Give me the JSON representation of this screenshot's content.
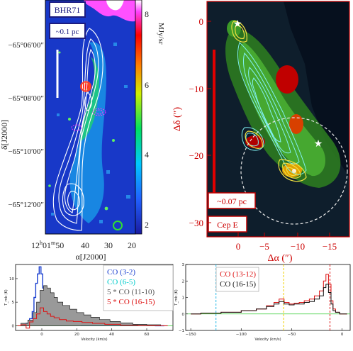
{
  "panel_a": {
    "label": "BHR71",
    "scale_label": "~0.1 pc",
    "colorbar_unit": "MJy/sr",
    "colorbar_ticks": [
      "8",
      "6",
      "4",
      "2"
    ],
    "dec_ticks": [
      "−65°06′00″",
      "−65°08′00″",
      "−65°10′00″",
      "−65°12′00″"
    ],
    "ra_ticks": [
      "12h01m50s",
      "40s",
      "30s",
      "20s"
    ],
    "ra_ticks_display": {
      "hms": "12",
      "h": "h",
      "m1": "01",
      "m": "m",
      "s1": "50",
      "t1": "40",
      "t2": "30",
      "t3": "20"
    },
    "ylabel": "δ[J2000]",
    "xlabel": "α[J2000]"
  },
  "panel_b": {
    "label": "Cep E",
    "scale_label": "~0.07 pc",
    "y_ticks": [
      "0",
      "−10",
      "−20",
      "−30"
    ],
    "x_ticks": [
      "0",
      "−5",
      "−10",
      "−15"
    ],
    "ylabel": "Δδ (″)",
    "xlabel": "Δα (″)",
    "accent_color": "#dd0000"
  },
  "chart_data": [
    {
      "type": "line",
      "xlabel": "Velocity (km/s)",
      "ylabel": "T_mb (K)",
      "x_ticks": [
        "0",
        "20",
        "40",
        "60"
      ],
      "y_ticks": [
        "0",
        "5",
        "10"
      ],
      "legend": [
        {
          "name": "CO (3-2)",
          "color": "#1a3fd0"
        },
        {
          "name": "CO (6-5)",
          "color": "#00cccc"
        },
        {
          "name": "5 * CO (11-10)",
          "color": "#555555"
        },
        {
          "name": "5 * CO (16-15)",
          "color": "#dd1111"
        }
      ],
      "series": [
        {
          "name": "CO (3-2)",
          "color": "#1a3fd0",
          "x": [
            -10,
            -8,
            -6,
            -5,
            -4,
            -3,
            -2,
            -1,
            0,
            1,
            2,
            4,
            6,
            10,
            15,
            20,
            30,
            40,
            50,
            60,
            70
          ],
          "y": [
            0.2,
            0.5,
            1.5,
            3,
            6,
            9,
            11,
            12.5,
            11,
            8,
            6,
            4,
            3,
            2.2,
            1.5,
            1,
            0.6,
            0.3,
            0.2,
            0.1,
            0
          ]
        },
        {
          "name": "CO (6-5)",
          "color": "#00cccc",
          "x": [
            -10,
            -6,
            -4,
            -2,
            -1,
            0,
            1,
            2,
            4,
            8,
            15,
            30,
            60
          ],
          "y": [
            0,
            0.3,
            1.2,
            3,
            3.8,
            3.5,
            2.2,
            1.2,
            0.6,
            0.3,
            0.1,
            0,
            0
          ]
        },
        {
          "name": "5 * CO (11-10)",
          "color": "#555555",
          "x": [
            -14,
            -10,
            -6,
            -4,
            -2,
            0,
            2,
            4,
            6,
            8,
            10,
            14,
            18,
            22,
            26,
            30,
            36,
            42,
            48,
            56,
            64,
            72
          ],
          "y": [
            0,
            0.5,
            1.2,
            2.8,
            5,
            7.5,
            8.5,
            8,
            7,
            6,
            5,
            4.3,
            3.5,
            2.8,
            2.3,
            1.8,
            1.3,
            0.9,
            0.6,
            0.3,
            0.2,
            0
          ]
        },
        {
          "name": "5 * CO (16-15)",
          "color": "#dd1111",
          "x": [
            -14,
            -10,
            -8,
            -6,
            -4,
            -2,
            0,
            2,
            4,
            6,
            8,
            12,
            16,
            20,
            26,
            32,
            40,
            50,
            60,
            72
          ],
          "y": [
            0,
            0.2,
            -0.5,
            0.8,
            1.5,
            2.5,
            3.8,
            3,
            2.5,
            2,
            1.7,
            1.3,
            1,
            0.9,
            0.7,
            0.5,
            0.3,
            0.1,
            0,
            0
          ]
        }
      ],
      "xlim": [
        -15,
        75
      ],
      "ylim": [
        -1,
        13
      ]
    },
    {
      "type": "line",
      "xlabel": "Velocity (km/s)",
      "ylabel": "T_mb (K)",
      "x_ticks": [
        "−150",
        "−100",
        "−50",
        "0"
      ],
      "y_ticks": [
        "−1",
        "0",
        "1",
        "2",
        "3"
      ],
      "legend": [
        {
          "name": "CO (13-12)",
          "color": "#dd1111"
        },
        {
          "name": "CO (16-15)",
          "color": "#111111"
        }
      ],
      "series": [
        {
          "name": "CO (13-12)",
          "color": "#dd1111",
          "x": [
            -150,
            -130,
            -110,
            -90,
            -80,
            -70,
            -65,
            -60,
            -55,
            -50,
            -45,
            -40,
            -35,
            -30,
            -25,
            -20,
            -17,
            -15,
            -12,
            -10,
            -8,
            -5,
            0,
            5
          ],
          "y": [
            0,
            0.05,
            0.1,
            0.2,
            0.3,
            0.5,
            0.7,
            0.9,
            0.7,
            0.6,
            0.65,
            0.7,
            0.8,
            0.9,
            1.1,
            1.4,
            2,
            2.4,
            1.8,
            0.8,
            0.3,
            0.1,
            0,
            0
          ]
        },
        {
          "name": "CO (16-15)",
          "color": "#111111",
          "x": [
            -150,
            -130,
            -110,
            -90,
            -80,
            -70,
            -65,
            -60,
            -55,
            -50,
            -45,
            -40,
            -35,
            -30,
            -25,
            -20,
            -17,
            -15,
            -12,
            -10,
            -8,
            -5,
            0,
            5
          ],
          "y": [
            0,
            0.05,
            0.1,
            0.2,
            0.3,
            0.45,
            0.6,
            0.75,
            0.6,
            0.55,
            0.6,
            0.6,
            0.7,
            0.75,
            0.9,
            1.1,
            1.6,
            1.8,
            1.3,
            0.6,
            0.2,
            0.1,
            0,
            0
          ]
        }
      ],
      "vlines": [
        {
          "x": -125,
          "color": "#22b8e8"
        },
        {
          "x": -58,
          "color": "#f0d000"
        },
        {
          "x": -12,
          "color": "#dd1111"
        }
      ],
      "xlim": [
        -155,
        8
      ],
      "ylim": [
        -1,
        3
      ]
    }
  ]
}
